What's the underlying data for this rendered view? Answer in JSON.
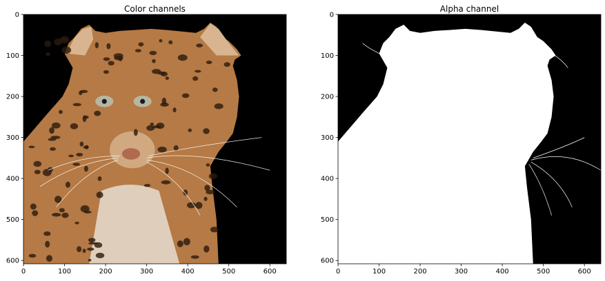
{
  "chart_data": [
    {
      "type": "image",
      "title": "Color channels",
      "xlabel": "",
      "ylabel": "",
      "xlim": [
        0,
        640
      ],
      "ylim": [
        608,
        0
      ],
      "x_ticks": [
        0,
        100,
        200,
        300,
        400,
        500,
        600
      ],
      "y_ticks": [
        0,
        100,
        200,
        300,
        400,
        500,
        600
      ],
      "content": "leopard"
    },
    {
      "type": "image",
      "title": "Alpha channel",
      "xlabel": "",
      "ylabel": "",
      "xlim": [
        0,
        640
      ],
      "ylim": [
        608,
        0
      ],
      "x_ticks": [
        0,
        100,
        200,
        300,
        400,
        500,
        600
      ],
      "y_ticks": [
        0,
        100,
        200,
        300,
        400,
        500,
        600
      ],
      "content": "alpha-mask"
    }
  ],
  "colors": {
    "background": "#000000",
    "mask": "#ffffff",
    "fur": "#b57a45",
    "fur_light": "#d8b590",
    "spot": "#2b1a0e",
    "chest": "#e6ddd0",
    "eye": "#b7b6a3"
  }
}
